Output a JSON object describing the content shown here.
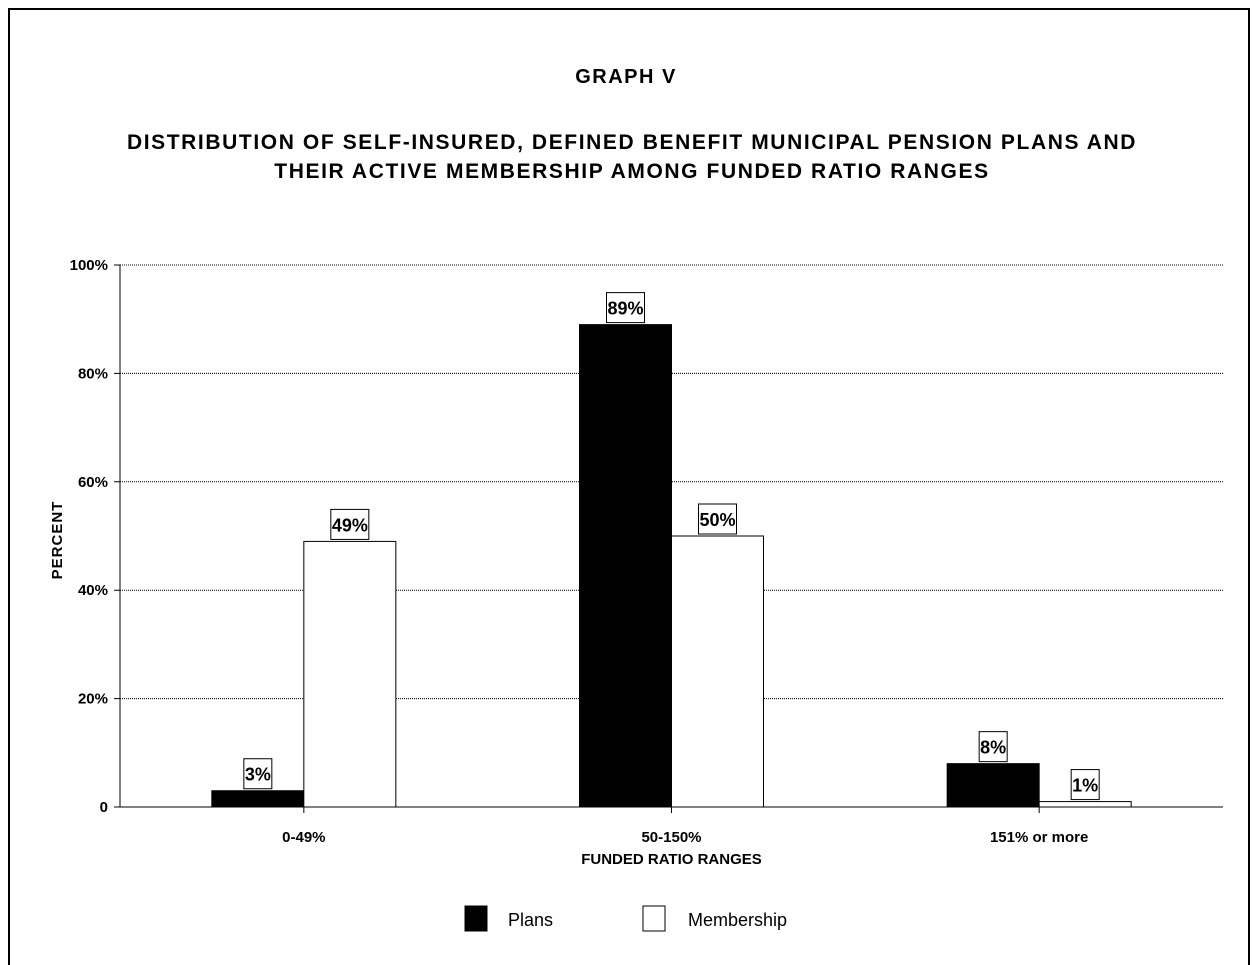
{
  "header": {
    "graph_label": "GRAPH V"
  },
  "chart_data": {
    "type": "bar",
    "title": "DISTRIBUTION OF SELF-INSURED, DEFINED BENEFIT MUNICIPAL PENSION PLANS AND THEIR ACTIVE MEMBERSHIP AMONG FUNDED RATIO RANGES",
    "title_lines": [
      "DISTRIBUTION OF SELF-INSURED, DEFINED BENEFIT MUNICIPAL PENSION PLANS AND",
      "THEIR ACTIVE MEMBERSHIP AMONG FUNDED RATIO RANGES"
    ],
    "xlabel": "FUNDED RATIO RANGES",
    "ylabel": "PERCENT",
    "categories": [
      "0-49%",
      "50-150%",
      "151% or more"
    ],
    "series": [
      {
        "name": "Plans",
        "values": [
          3,
          89,
          8
        ],
        "labels": [
          "3%",
          "89%",
          "8%"
        ],
        "color": "#000000"
      },
      {
        "name": "Membership",
        "values": [
          49,
          50,
          1
        ],
        "labels": [
          "49%",
          "50%",
          "1%"
        ],
        "color": "#ffffff"
      }
    ],
    "ylim": [
      0,
      100
    ],
    "yticks": [
      0,
      20,
      40,
      60,
      80,
      100
    ],
    "ytick_labels": [
      "0",
      "20%",
      "40%",
      "60%",
      "80%",
      "100%"
    ],
    "grid": true,
    "legend": "bottom-center"
  }
}
